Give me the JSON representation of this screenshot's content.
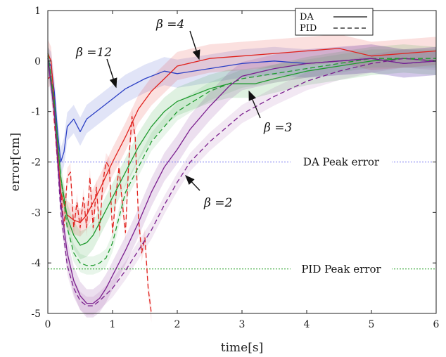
{
  "chart_data": {
    "type": "line",
    "xlabel": "time[s]",
    "ylabel": "error[cm]",
    "xlim": [
      0,
      6
    ],
    "ylim": [
      -5,
      1
    ],
    "x_ticks": [
      "0",
      "1",
      "2",
      "3",
      "4",
      "5",
      "6"
    ],
    "y_ticks": [
      "1",
      "0",
      "-1",
      "-2",
      "-3",
      "-4",
      "-5"
    ],
    "grid": false,
    "legend_position": "top-right",
    "legend": [
      {
        "label": "DA",
        "style": "solid"
      },
      {
        "label": "PID",
        "style": "dashed"
      }
    ],
    "series": [
      {
        "beta": "12",
        "method": "DA",
        "color": "#2b3fc4",
        "x": [
          0,
          0.05,
          0.1,
          0.15,
          0.2,
          0.25,
          0.3,
          0.4,
          0.5,
          0.6,
          0.8,
          1.0,
          1.2,
          1.5,
          1.8,
          2.0,
          2.5,
          3.0,
          3.5,
          4.0,
          4.5,
          5.0,
          5.5,
          6.0
        ],
        "y": [
          0,
          -0.1,
          -0.6,
          -1.4,
          -2.0,
          -1.8,
          -1.3,
          -1.15,
          -1.4,
          -1.15,
          -0.95,
          -0.75,
          -0.55,
          -0.35,
          -0.2,
          -0.25,
          -0.15,
          -0.05,
          0.0,
          -0.05,
          0.0,
          0.05,
          -0.05,
          0.0
        ]
      },
      {
        "beta": "4",
        "method": "DA",
        "color": "#e0211c",
        "x": [
          0,
          0.05,
          0.1,
          0.15,
          0.2,
          0.3,
          0.4,
          0.5,
          0.6,
          0.7,
          0.8,
          1.0,
          1.2,
          1.4,
          1.6,
          1.8,
          2.0,
          2.5,
          3.0,
          3.5,
          4.0,
          4.5,
          5.0,
          5.5,
          6.0
        ],
        "y": [
          0.15,
          0.0,
          -0.8,
          -1.8,
          -2.6,
          -3.05,
          -3.15,
          -3.2,
          -3.05,
          -2.8,
          -2.55,
          -2.0,
          -1.5,
          -0.95,
          -0.6,
          -0.35,
          -0.1,
          0.05,
          0.1,
          0.15,
          0.2,
          0.25,
          0.1,
          0.15,
          0.2
        ]
      },
      {
        "beta": "4",
        "method": "PID",
        "color": "#e0211c",
        "x": [
          0,
          0.05,
          0.1,
          0.15,
          0.2,
          0.25,
          0.3,
          0.35,
          0.4,
          0.45,
          0.5,
          0.55,
          0.6,
          0.65,
          0.7,
          0.75,
          0.8,
          0.85,
          0.9,
          0.95,
          1.0,
          1.05,
          1.1,
          1.15,
          1.2,
          1.25,
          1.3,
          1.35,
          1.4,
          1.45,
          1.5,
          1.55,
          1.6
        ],
        "y": [
          -0.35,
          -0.3,
          -1.2,
          -2.0,
          -2.6,
          -3.3,
          -2.3,
          -2.2,
          -3.3,
          -2.8,
          -3.3,
          -2.7,
          -3.3,
          -2.3,
          -3.3,
          -2.5,
          -3.35,
          -2.4,
          -2.0,
          -2.1,
          -3.4,
          -2.7,
          -2.1,
          -2.8,
          -3.4,
          -2.0,
          -1.1,
          -1.5,
          -3.1,
          -3.8,
          -3.5,
          -4.5,
          -5.0
        ]
      },
      {
        "beta": "3",
        "method": "DA",
        "color": "#1f9a2e",
        "x": [
          0,
          0.1,
          0.2,
          0.3,
          0.4,
          0.5,
          0.6,
          0.7,
          0.8,
          1.0,
          1.2,
          1.4,
          1.6,
          1.8,
          2.0,
          2.2,
          2.5,
          2.8,
          3.0,
          3.2,
          3.5,
          4.0,
          4.5,
          5.0,
          5.5,
          6.0
        ],
        "y": [
          0.1,
          -0.9,
          -2.3,
          -3.1,
          -3.45,
          -3.65,
          -3.6,
          -3.45,
          -3.2,
          -2.7,
          -2.2,
          -1.7,
          -1.3,
          -1.0,
          -0.8,
          -0.7,
          -0.55,
          -0.45,
          -0.45,
          -0.45,
          -0.35,
          -0.2,
          -0.1,
          0.0,
          0.05,
          0.0
        ]
      },
      {
        "beta": "3",
        "method": "PID",
        "color": "#1f9a2e",
        "x": [
          0,
          0.1,
          0.2,
          0.3,
          0.4,
          0.5,
          0.6,
          0.7,
          0.8,
          0.9,
          1.0,
          1.1,
          1.2,
          1.4,
          1.6,
          1.8,
          2.0,
          2.5,
          3.0,
          3.5,
          4.0,
          4.5,
          5.0,
          5.5,
          6.0
        ],
        "y": [
          0.15,
          -0.8,
          -2.3,
          -3.3,
          -3.8,
          -4.0,
          -4.05,
          -4.05,
          -4.0,
          -3.9,
          -3.6,
          -3.1,
          -2.6,
          -2.1,
          -1.6,
          -1.3,
          -1.0,
          -0.6,
          -0.35,
          -0.25,
          -0.15,
          -0.05,
          0.05,
          0.05,
          0.05
        ]
      },
      {
        "beta": "2",
        "method": "DA",
        "color": "#7b1f8e",
        "x": [
          0,
          0.1,
          0.2,
          0.3,
          0.4,
          0.5,
          0.6,
          0.7,
          0.8,
          0.9,
          1.0,
          1.2,
          1.4,
          1.6,
          1.8,
          2.0,
          2.2,
          2.5,
          2.8,
          3.0,
          3.5,
          4.0,
          4.5,
          5.0,
          5.5,
          6.0
        ],
        "y": [
          0.05,
          -1.0,
          -2.8,
          -3.8,
          -4.35,
          -4.65,
          -4.8,
          -4.8,
          -4.7,
          -4.5,
          -4.25,
          -3.75,
          -3.2,
          -2.6,
          -2.1,
          -1.75,
          -1.35,
          -0.9,
          -0.5,
          -0.3,
          -0.15,
          -0.05,
          0.0,
          0.05,
          -0.05,
          0.0
        ]
      },
      {
        "beta": "2",
        "method": "PID",
        "color": "#7b1f8e",
        "x": [
          0,
          0.1,
          0.2,
          0.3,
          0.4,
          0.5,
          0.6,
          0.7,
          0.8,
          1.0,
          1.2,
          1.4,
          1.6,
          1.8,
          2.0,
          2.2,
          2.5,
          3.0,
          3.5,
          4.0,
          4.5,
          5.0,
          5.5,
          6.0
        ],
        "y": [
          0.05,
          -1.0,
          -3.0,
          -4.05,
          -4.5,
          -4.75,
          -4.85,
          -4.85,
          -4.75,
          -4.5,
          -4.15,
          -3.75,
          -3.35,
          -2.85,
          -2.4,
          -2.0,
          -1.6,
          -1.05,
          -0.7,
          -0.4,
          -0.2,
          -0.05,
          0.05,
          0.0
        ]
      }
    ],
    "reference_lines": [
      {
        "y": -2.0,
        "label": "DA  Peak error",
        "color": "#6f6ff0"
      },
      {
        "y": -4.12,
        "label": "PID  Peak error",
        "color": "#1a9a1a"
      }
    ],
    "annotations": [
      {
        "text": "β =12",
        "target_series": "12"
      },
      {
        "text": "β =4",
        "target_series": "4"
      },
      {
        "text": "β =3",
        "target_series": "3"
      },
      {
        "text": "β =2",
        "target_series": "2"
      }
    ]
  }
}
